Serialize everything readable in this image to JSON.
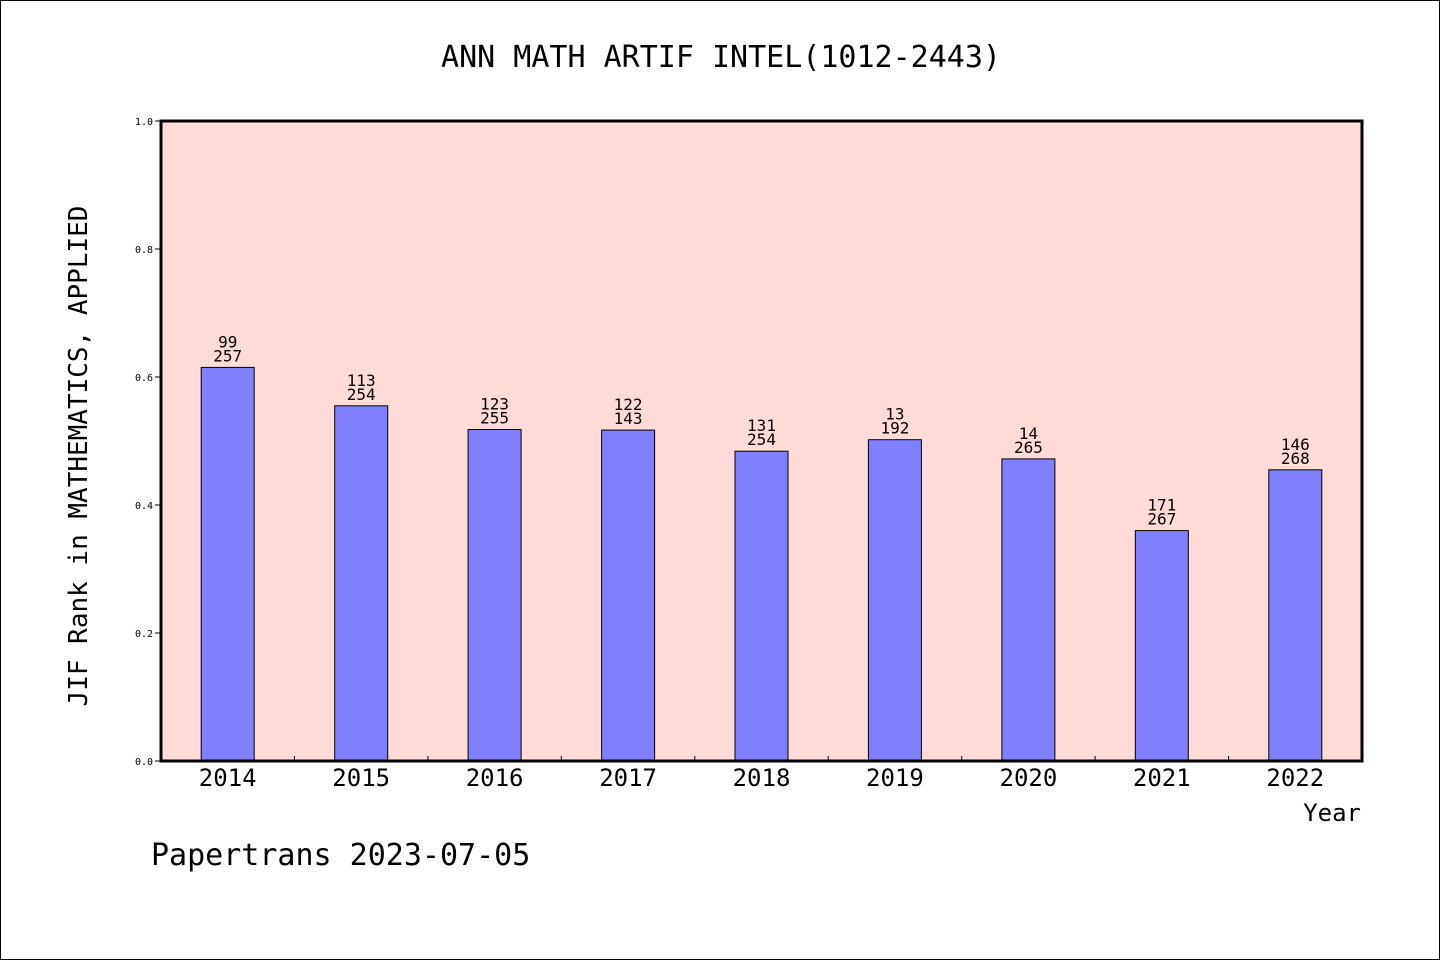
{
  "chart_data": {
    "type": "bar",
    "title": "ANN MATH ARTIF INTEL(1012-2443)",
    "xlabel": "Year",
    "ylabel": "JIF Rank in MATHEMATICS, APPLIED",
    "categories": [
      "2014",
      "2015",
      "2016",
      "2017",
      "2018",
      "2019",
      "2020",
      "2021",
      "2022"
    ],
    "values": [
      0.615,
      0.555,
      0.518,
      0.517,
      0.484,
      0.502,
      0.472,
      0.36,
      0.455
    ],
    "rank_labels": [
      "99",
      "113",
      "123",
      "122",
      "131",
      "13",
      "14",
      "171",
      "146"
    ],
    "total_labels": [
      "257",
      "254",
      "255",
      "143",
      "254",
      "192",
      "265",
      "267",
      "268"
    ],
    "ylim": [
      0,
      1.0
    ],
    "yticks": [
      "0.0",
      "0.2",
      "0.4",
      "0.6",
      "0.8",
      "1.0"
    ],
    "grid": false,
    "bar_color": "#8080ff",
    "plot_background": "#ffdbd8"
  },
  "footer": {
    "text": "Papertrans 2023-07-05"
  }
}
